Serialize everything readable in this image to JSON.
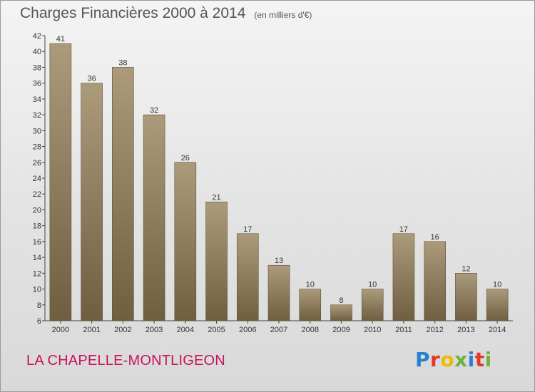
{
  "title": "Charges Financières 2000 à 2014",
  "unit_note": "(en milliers d'€)",
  "town": "LA CHAPELLE-MONTLIGEON",
  "logo": {
    "text": "Proxiti",
    "colors": [
      "#2a7fd2",
      "#e0392b",
      "#f2b900",
      "#6cb33f",
      "#2a7fd2",
      "#e0392b",
      "#6cb33f"
    ]
  },
  "colors": {
    "bar_top": "#ab9b7b",
    "bar_bottom": "#6f5e40",
    "town": "#c8145a"
  },
  "chart_data": {
    "type": "bar",
    "categories": [
      "2000",
      "2001",
      "2002",
      "2003",
      "2004",
      "2005",
      "2006",
      "2007",
      "2008",
      "2009",
      "2010",
      "2011",
      "2012",
      "2013",
      "2014"
    ],
    "values": [
      41,
      36,
      38,
      32,
      26,
      21,
      17,
      13,
      10,
      8,
      10,
      17,
      16,
      12,
      10
    ],
    "title": "Charges Financières 2000 à 2014",
    "subtitle": "(en milliers d'€)",
    "xlabel": "",
    "ylabel": "",
    "ylim": [
      6,
      42
    ],
    "yticks": [
      6,
      8,
      10,
      12,
      14,
      16,
      18,
      20,
      22,
      24,
      26,
      28,
      30,
      32,
      34,
      36,
      38,
      40,
      42
    ],
    "grid": false,
    "data_labels": true
  }
}
